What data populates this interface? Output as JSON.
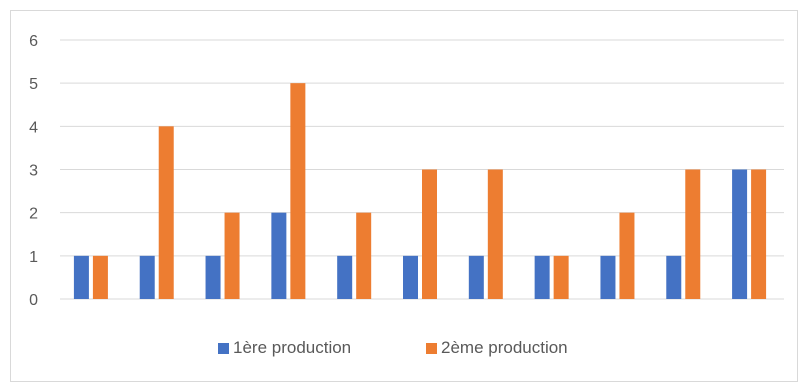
{
  "chart_data": {
    "type": "bar",
    "categories": [
      "",
      "",
      "",
      "",
      "",
      "",
      "",
      "",
      "",
      "",
      ""
    ],
    "series": [
      {
        "name": "1ère production",
        "color": "#4472c4",
        "values": [
          1,
          1,
          1,
          2,
          1,
          1,
          1,
          1,
          1,
          1,
          3
        ]
      },
      {
        "name": "2ème production",
        "color": "#ed7d31",
        "values": [
          1,
          4,
          2,
          5,
          2,
          3,
          3,
          1,
          2,
          3,
          3
        ]
      }
    ],
    "yticks": [
      "0",
      "1",
      "2",
      "3",
      "4",
      "5",
      "6"
    ],
    "ylim": [
      0,
      6
    ],
    "grid": true,
    "legend_position": "bottom",
    "title": "",
    "xlabel": "",
    "ylabel": ""
  }
}
